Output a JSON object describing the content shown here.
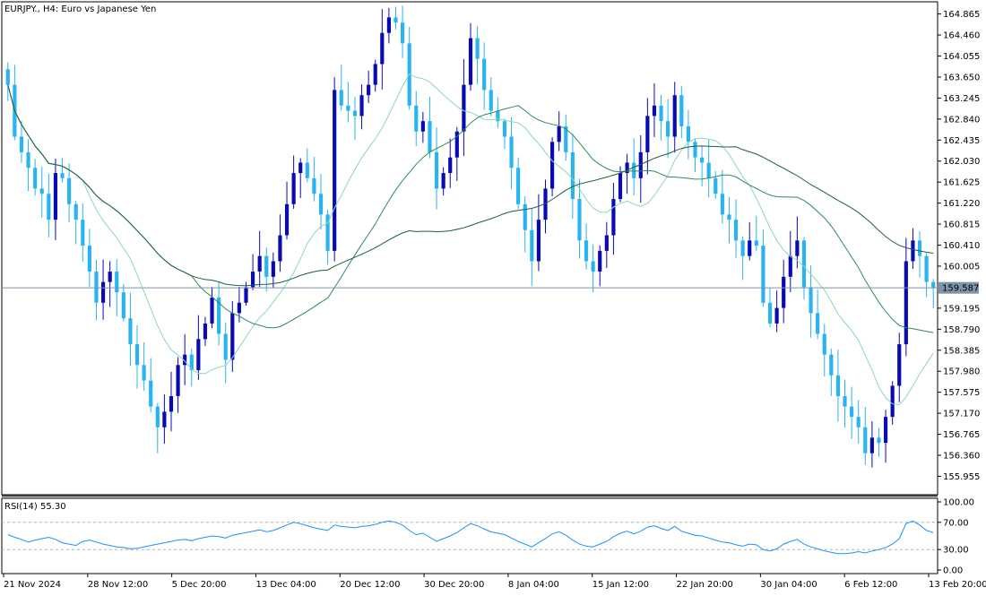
{
  "chart_data": {
    "type": "candlestick",
    "title": "EURJPY., H4:  Euro vs Japanese Yen",
    "symbol": "EURJPY.",
    "timeframe": "H4",
    "description": "Euro vs Japanese Yen",
    "ylim": [
      155.6,
      165.1
    ],
    "y_ticks": [
      "164.865",
      "164.460",
      "164.055",
      "163.650",
      "163.245",
      "162.840",
      "162.435",
      "162.030",
      "161.625",
      "161.220",
      "160.815",
      "160.410",
      "160.005",
      "159.195",
      "158.790",
      "158.385",
      "157.980",
      "157.575",
      "157.170",
      "156.765",
      "156.360",
      "155.955"
    ],
    "x_ticks": [
      "21 Nov 2024",
      "28 Nov 12:00",
      "5 Dec 20:00",
      "13 Dec 04:00",
      "20 Dec 12:00",
      "30 Dec 20:00",
      "8 Jan 04:00",
      "15 Jan 12:00",
      "22 Jan 20:00",
      "30 Jan 04:00",
      "6 Feb 12:00",
      "13 Feb 20:00"
    ],
    "current_price": "159.587",
    "up_color": "#0a0ab4",
    "down_color": "#28b4f0",
    "closes": [
      163.5,
      162.5,
      162.2,
      161.9,
      161.5,
      161.4,
      160.9,
      161.8,
      161.7,
      161.2,
      160.9,
      160.4,
      159.9,
      159.3,
      159.7,
      159.9,
      159.5,
      159.0,
      158.5,
      158.1,
      157.8,
      157.3,
      156.9,
      157.2,
      157.5,
      158.1,
      158.3,
      158.0,
      158.6,
      158.9,
      159.4,
      158.7,
      158.2,
      159.1,
      159.3,
      159.6,
      159.9,
      160.2,
      159.8,
      160.1,
      160.6,
      161.2,
      161.8,
      162.0,
      161.7,
      161.4,
      161.0,
      160.3,
      163.4,
      163.1,
      163.0,
      162.9,
      163.3,
      163.5,
      163.9,
      164.5,
      164.8,
      164.7,
      164.3,
      163.1,
      162.6,
      162.8,
      162.2,
      161.5,
      161.8,
      162.1,
      162.6,
      163.5,
      164.4,
      164.0,
      163.4,
      163.0,
      162.8,
      162.5,
      161.9,
      161.2,
      160.7,
      160.1,
      160.9,
      161.5,
      162.4,
      162.7,
      162.2,
      161.3,
      160.5,
      160.1,
      159.9,
      160.3,
      160.6,
      161.3,
      161.8,
      162.0,
      161.7,
      162.2,
      162.9,
      163.1,
      162.8,
      162.5,
      163.3,
      162.7,
      162.4,
      162.1,
      162.0,
      161.7,
      161.4,
      161.0,
      160.9,
      160.5,
      160.2,
      160.5,
      160.4,
      159.3,
      158.9,
      159.2,
      159.8,
      160.2,
      160.5,
      159.6,
      159.1,
      158.7,
      158.3,
      157.9,
      157.5,
      157.3,
      157.1,
      156.9,
      156.4,
      156.7,
      156.6,
      157.1,
      157.7,
      158.5,
      160.1,
      160.5,
      160.2,
      159.7,
      159.587
    ],
    "oscillator_title": "RSI(14) 55.30",
    "oscillator_ylim": [
      0,
      100
    ],
    "oscillator_ticks": [
      "100.00",
      "70.00",
      "30.00",
      "0.00"
    ],
    "oscillator_levels": [
      70,
      30
    ],
    "rsi": [
      52,
      48,
      45,
      41,
      44,
      46,
      48,
      45,
      40,
      38,
      36,
      42,
      44,
      41,
      38,
      36,
      34,
      33,
      31,
      32,
      34,
      36,
      38,
      40,
      42,
      44,
      45,
      43,
      46,
      48,
      50,
      49,
      47,
      51,
      53,
      55,
      57,
      59,
      56,
      58,
      62,
      66,
      70,
      68,
      65,
      62,
      60,
      58,
      66,
      64,
      63,
      62,
      64,
      65,
      67,
      70,
      72,
      70,
      66,
      58,
      52,
      54,
      48,
      42,
      46,
      50,
      55,
      62,
      68,
      65,
      60,
      56,
      54,
      52,
      47,
      42,
      38,
      34,
      40,
      46,
      53,
      56,
      51,
      44,
      38,
      35,
      34,
      38,
      42,
      49,
      54,
      57,
      53,
      57,
      63,
      65,
      61,
      58,
      64,
      57,
      54,
      51,
      50,
      47,
      44,
      41,
      40,
      37,
      35,
      38,
      37,
      30,
      28,
      31,
      38,
      42,
      45,
      38,
      34,
      31,
      28,
      26,
      24,
      24,
      25,
      27,
      25,
      28,
      30,
      33,
      38,
      46,
      68,
      72,
      66,
      58,
      55
    ]
  }
}
